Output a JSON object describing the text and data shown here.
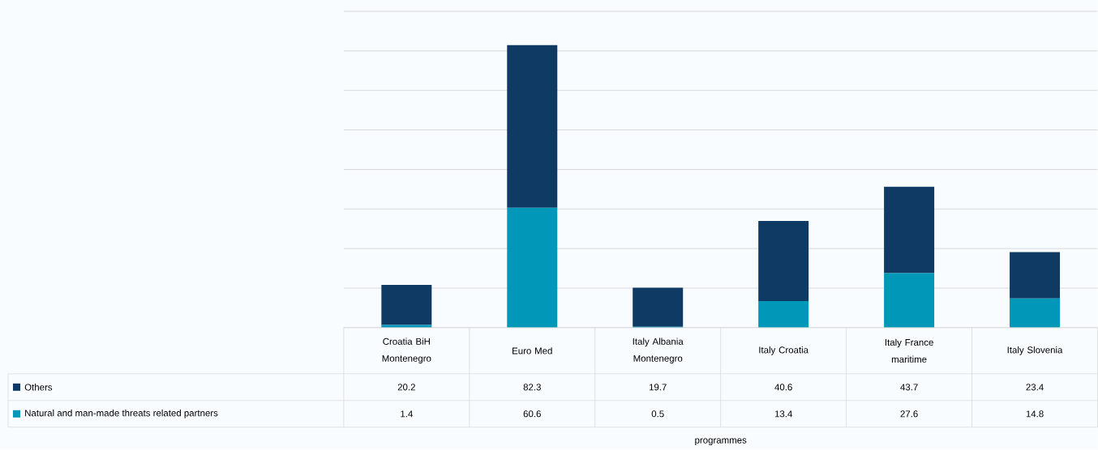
{
  "chart_data": {
    "type": "bar",
    "stacked": true,
    "annotations": [
      "programmes"
    ],
    "categories": [
      "Croatia BiH Montenegro",
      "Euro Med",
      "Italy Albania Montenegro",
      "Italy Croatia",
      "Italy France maritime",
      "Italy Slovenia"
    ],
    "series": [
      {
        "name": "Natural and man-made threats related partners",
        "color": "#0097b8",
        "values": [
          1.4,
          60.6,
          0.5,
          13.4,
          27.6,
          14.8
        ]
      },
      {
        "name": "Others",
        "color": "#0f3a63",
        "values": [
          20.2,
          82.3,
          19.7,
          40.6,
          43.7,
          23.4
        ]
      }
    ],
    "ylim": [
      0,
      160
    ],
    "yticks": [
      {
        "value": 0,
        "label": null
      },
      {
        "value": 20,
        "label": null
      },
      {
        "value": 40,
        "label": null
      },
      {
        "value": 60,
        "label": null
      },
      {
        "value": 80,
        "label": null
      },
      {
        "value": 100,
        "label": null
      },
      {
        "value": 120,
        "label": null
      },
      {
        "value": 140,
        "label": null
      },
      {
        "value": 160,
        "label": null
      }
    ],
    "grid": "y",
    "legend": "bottom left",
    "data_labels": true,
    "tick_labels": "x"
  }
}
